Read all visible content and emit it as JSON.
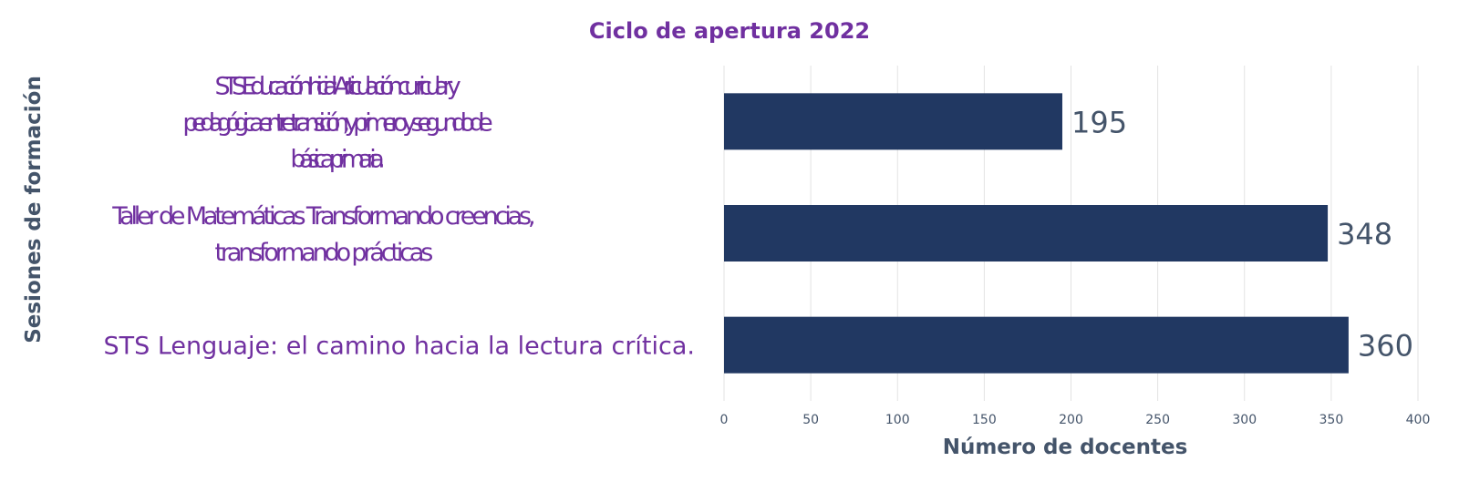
{
  "chart_data": {
    "type": "bar",
    "orientation": "horizontal",
    "title": "Ciclo de apertura 2022",
    "xlabel": "Número de docentes",
    "ylabel": "Sesiones de formación",
    "categories": [
      "STS Educación Inicial: Articulación curricular y pedagógica entre transición, y primero y segundo de básica primaria.",
      "Taller de Matemáticas Transformando creencias, transformando prácticas",
      "STS Lenguaje: el camino hacia la lectura crítica."
    ],
    "category_lines": [
      [
        "STS Educación Inicial: Articulación curricular y",
        "pedagógica entre transición, y primero y segundo de",
        "básica primaria."
      ],
      [
        "Taller de Matemáticas Transformando creencias,",
        "transformando prácticas"
      ],
      [
        "STS Lenguaje: el camino hacia la lectura crítica."
      ]
    ],
    "values": [
      195,
      348,
      360
    ],
    "data_labels": [
      "195",
      "348",
      "360"
    ],
    "xlim": [
      0,
      400
    ],
    "xticks": [
      0,
      50,
      100,
      150,
      200,
      250,
      300,
      350,
      400
    ],
    "xtick_labels": [
      "0",
      "50",
      "100",
      "150",
      "200",
      "250",
      "300",
      "350",
      "400"
    ],
    "grid": true,
    "legend": "none",
    "colors": {
      "bar": "#213862",
      "title": "#7030a0",
      "category_label": "#7030a0",
      "axis_title": "#44546a",
      "tick_label": "#44546a",
      "data_label": "#44546a",
      "grid": "#e3e3e3"
    }
  }
}
